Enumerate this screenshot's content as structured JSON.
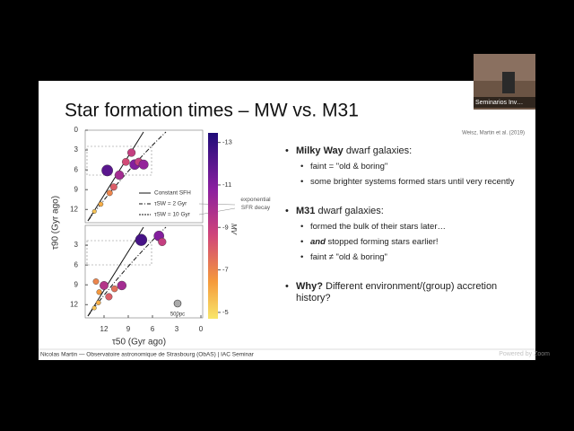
{
  "slide": {
    "title": "Star formation times – MW vs. M31",
    "citation": "Weisz, Martin et al. (2019)",
    "footer": "Nicolas Martin — Observatoire astronomique de Strasbourg (ObAS) | IAC Seminar"
  },
  "figure": {
    "x_label": "τ50 (Gyr ago)",
    "y_label": "τ90 (Gyr ago)",
    "xlim": [
      14,
      0
    ],
    "ylim": [
      0,
      14
    ],
    "xticks": [
      12,
      9,
      6,
      3,
      0
    ],
    "legend": [
      "Constant SFH",
      "τSW = 2 Gyr",
      "τSW = 10 Gyr"
    ],
    "annotation": "exponential SFR decay",
    "scale_label": "500pc",
    "colorbar": {
      "label": "MV",
      "lim": [
        -13.45,
        -4.7
      ],
      "ticks": [
        -13,
        -11,
        -9,
        -7,
        -5
      ]
    },
    "panels": [
      {
        "yticks": [
          0,
          3,
          6,
          9,
          12
        ],
        "points": [
          {
            "tau50": 11.6,
            "tau90": 6.1,
            "mv": -12
          },
          {
            "tau50": 8.2,
            "tau90": 5.2,
            "mv": -11
          },
          {
            "tau50": 7.7,
            "tau90": 4.8,
            "mv": -9
          },
          {
            "tau50": 7.1,
            "tau90": 5.2,
            "mv": -10.5
          },
          {
            "tau50": 10.1,
            "tau90": 6.8,
            "mv": -10
          },
          {
            "tau50": 10.8,
            "tau90": 8.6,
            "mv": -8
          },
          {
            "tau50": 12.4,
            "tau90": 11.2,
            "mv": -6
          },
          {
            "tau50": 13.2,
            "tau90": 12.3,
            "mv": -5.5
          },
          {
            "tau50": 8.6,
            "tau90": 3.4,
            "mv": -9
          },
          {
            "tau50": 9.3,
            "tau90": 4.8,
            "mv": -8.5
          },
          {
            "tau50": 11.3,
            "tau90": 9.5,
            "mv": -7
          }
        ]
      },
      {
        "yticks": [
          3,
          6,
          9,
          12
        ],
        "points": [
          {
            "tau50": 7.4,
            "tau90": 2.2,
            "mv": -12.5
          },
          {
            "tau50": 5.2,
            "tau90": 1.6,
            "mv": -11
          },
          {
            "tau50": 4.8,
            "tau90": 2.5,
            "mv": -9
          },
          {
            "tau50": 13,
            "tau90": 8.5,
            "mv": -7
          },
          {
            "tau50": 11.4,
            "tau90": 10.8,
            "mv": -8
          },
          {
            "tau50": 12,
            "tau90": 9.1,
            "mv": -9.5
          },
          {
            "tau50": 13.2,
            "tau90": 12.5,
            "mv": -5.5
          },
          {
            "tau50": 12.7,
            "tau90": 11.7,
            "mv": -6
          },
          {
            "tau50": 9.8,
            "tau90": 9.1,
            "mv": -10
          },
          {
            "tau50": 10.7,
            "tau90": 9.6,
            "mv": -7.5
          },
          {
            "tau50": 12.6,
            "tau90": 10.1,
            "mv": -6.5
          }
        ]
      }
    ]
  },
  "bullets": [
    {
      "bold": "Milky Way",
      "text": " dwarf galaxies:",
      "subs": [
        {
          "text": "faint = \"old & boring\""
        },
        {
          "text": "some brighter systems formed stars until very recently"
        }
      ]
    },
    {
      "bold": "M31",
      "text": " dwarf galaxies:",
      "subs": [
        {
          "text": "formed the bulk of their stars later…"
        },
        {
          "bold": "and",
          "text": " stopped forming stars earlier!"
        },
        {
          "text": "faint ≠ \"old & boring\""
        }
      ]
    },
    {
      "bold": "Why?",
      "text": " Different environment/(group) accretion history?",
      "subs": []
    }
  ],
  "video": {
    "label": "Seminarios Inv…"
  },
  "watermark": "Powered by Zoom"
}
